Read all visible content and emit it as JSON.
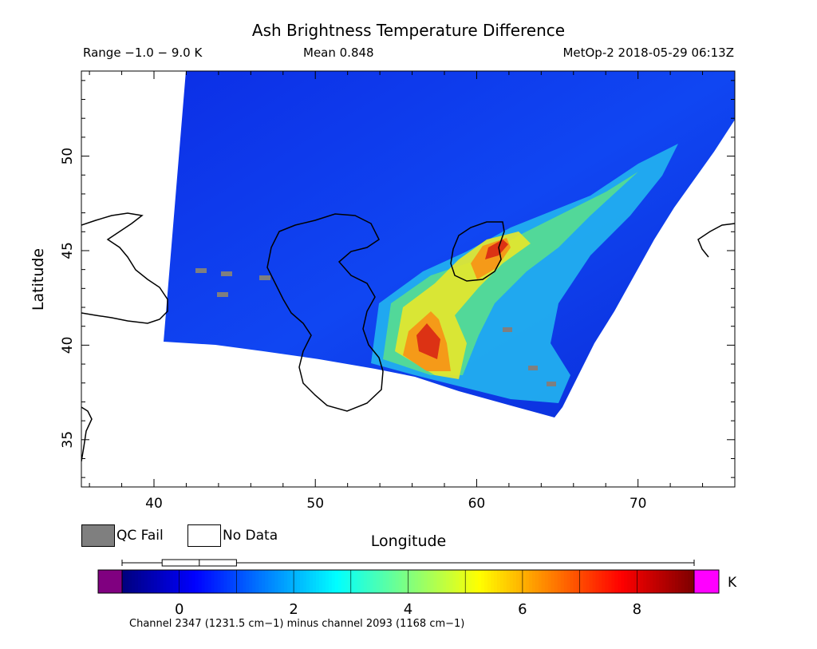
{
  "header": {
    "title": "Ash Brightness Temperature Difference",
    "range": "Range −1.0 − 9.0 K",
    "mean": "Mean 0.848",
    "satellite_time": "MetOp-2 2018-05-29 06:13Z"
  },
  "map": {
    "x_axis_label": "Longitude",
    "y_axis_label": "Latitude",
    "lon_range": [
      35.5,
      76
    ],
    "lat_range": [
      32.5,
      54.5
    ],
    "lon_ticks": [
      40,
      50,
      60,
      70
    ],
    "lat_ticks": [
      35,
      40,
      45,
      50
    ]
  },
  "legend": {
    "qc_fail_label": "QC Fail",
    "no_data_label": "No Data",
    "qc_fail_color": "#7f7f7f",
    "no_data_color": "#ffffff"
  },
  "colorbar": {
    "caption": "Channel 2347 (1231.5 cm−1) minus channel 2093 (1168 cm−1)",
    "units": "K",
    "range": [
      -1,
      9
    ],
    "tick_values": [
      0,
      2,
      4,
      6,
      8
    ],
    "underflow_color": "#800080",
    "overflow_color": "#ff00ff",
    "box_plot": {
      "min": -1.0,
      "q1": -0.3,
      "median": 0.35,
      "q3": 1.0,
      "max": 9.0
    }
  }
}
